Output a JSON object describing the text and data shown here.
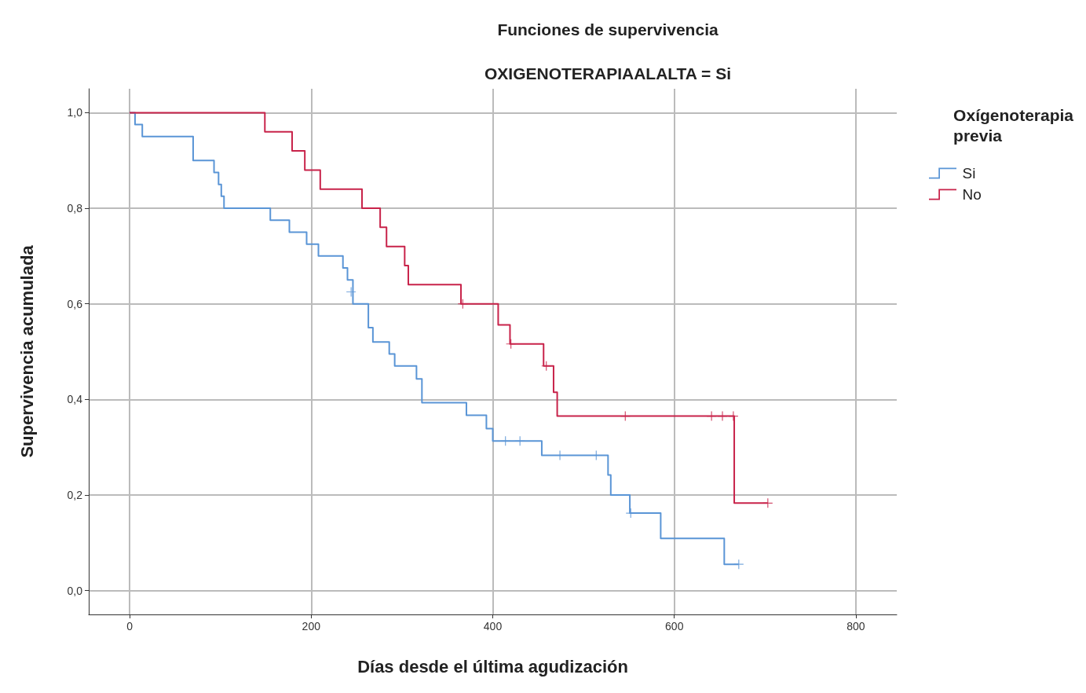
{
  "chart_data": {
    "type": "step",
    "title": "Funciones de supervivencia",
    "subtitle": "OXIGENOTERAPIAALALTA = Si",
    "xlabel": "Días desde el última agudización",
    "ylabel": "Supervivencia acumulada",
    "legend_title": "Oxígenoterapia previa",
    "legend": "top right",
    "grid": true,
    "line_style": "solid",
    "xlim": [
      -45,
      845
    ],
    "xticks": [
      0,
      200,
      400,
      600,
      800
    ],
    "ylim": [
      -0.05,
      1.05
    ],
    "yticks": [
      {
        "value": 0,
        "label": "0,0"
      },
      {
        "value": 0.2,
        "label": "0,2"
      },
      {
        "value": 0.4,
        "label": "0,4"
      },
      {
        "value": 0.6,
        "label": "0,6"
      },
      {
        "value": 0.8,
        "label": "0,8"
      },
      {
        "value": 1,
        "label": "1,0"
      }
    ],
    "series": [
      {
        "name": "Si",
        "color": "#5a95d6",
        "x": [
          0,
          6,
          14,
          70,
          93,
          98,
          101,
          104,
          155,
          176,
          195,
          208,
          235,
          240,
          246,
          263,
          268,
          286,
          292,
          316,
          322,
          371,
          393,
          400,
          454,
          527,
          530,
          551,
          585,
          655,
          671
        ],
        "values": [
          1,
          0.975,
          0.95,
          0.9,
          0.875,
          0.85,
          0.825,
          0.8,
          0.775,
          0.75,
          0.725,
          0.7,
          0.675,
          0.65,
          0.6,
          0.55,
          0.52,
          0.495,
          0.47,
          0.443,
          0.393,
          0.367,
          0.339,
          0.313,
          0.283,
          0.242,
          0.2,
          0.162,
          0.109,
          0.055,
          0.055
        ]
      },
      {
        "name": "No",
        "color": "#c8234a",
        "x": [
          0,
          149,
          179,
          193,
          210,
          256,
          276,
          283,
          303,
          307,
          365,
          406,
          419,
          456,
          467,
          471,
          666,
          703
        ],
        "values": [
          1,
          0.96,
          0.92,
          0.88,
          0.84,
          0.8,
          0.76,
          0.72,
          0.68,
          0.64,
          0.6,
          0.556,
          0.516,
          0.47,
          0.415,
          0.365,
          0.183,
          0.183
        ]
      },
      {
        "type": "scatter",
        "marker": "cross",
        "color": "#5a95d6",
        "x": [
          244,
          414,
          430,
          474,
          514,
          552,
          671
        ],
        "values": [
          0.625,
          0.313,
          0.313,
          0.283,
          0.283,
          0.162,
          0.055
        ]
      },
      {
        "type": "scatter",
        "marker": "cross",
        "color": "#c8234a",
        "x": [
          367,
          420,
          459,
          546,
          641,
          653,
          665,
          703
        ],
        "values": [
          0.6,
          0.516,
          0.47,
          0.365,
          0.365,
          0.365,
          0.365,
          0.183
        ]
      }
    ]
  }
}
